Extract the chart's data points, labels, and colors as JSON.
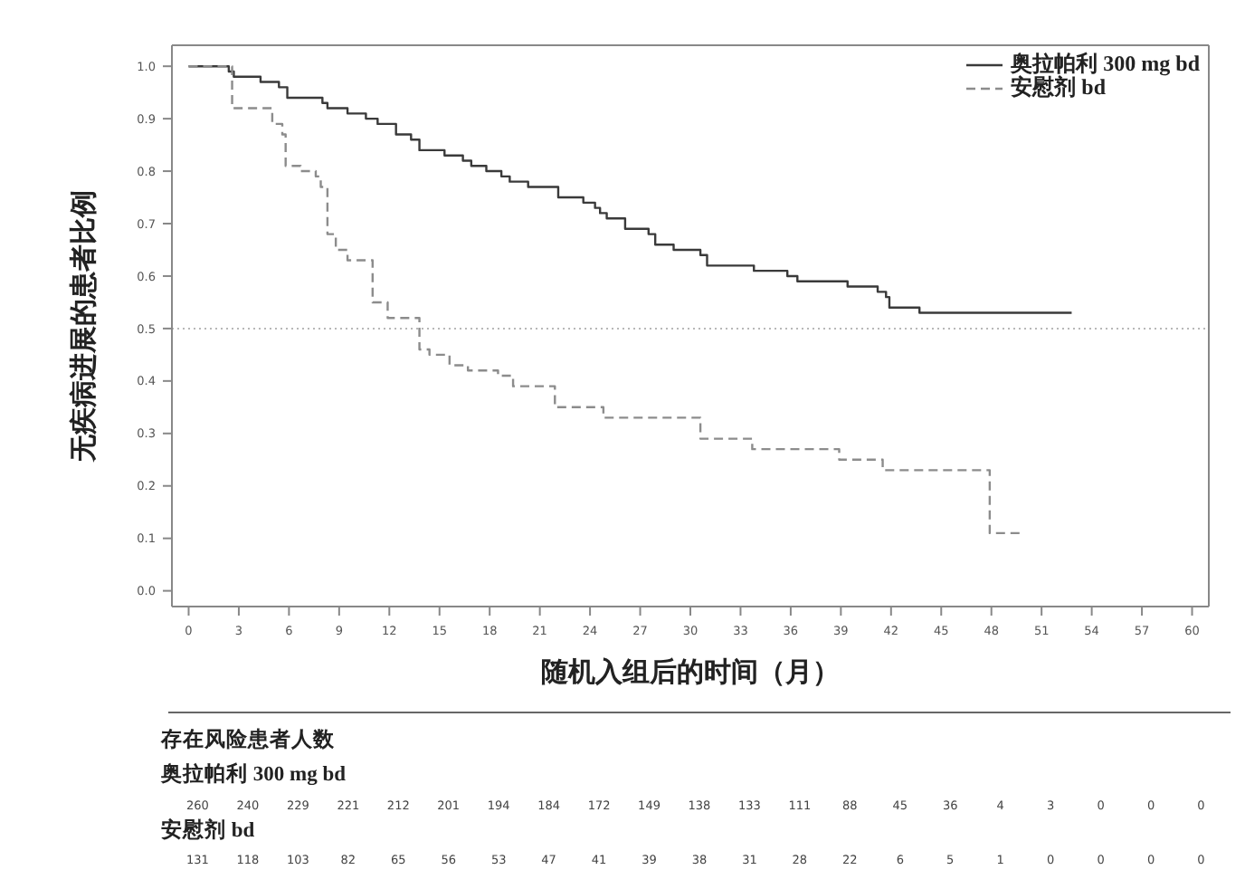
{
  "chart_data": {
    "type": "step",
    "xlabel": "随机入组后的时间（月）",
    "ylabel": "无疾病进展的患者比例",
    "xlim": [
      -1,
      61
    ],
    "xticks": [
      0,
      3,
      6,
      9,
      12,
      15,
      18,
      21,
      24,
      27,
      30,
      33,
      36,
      39,
      42,
      45,
      48,
      51,
      54,
      57,
      60
    ],
    "ylim": [
      -0.03,
      1.04
    ],
    "yticks": [
      {
        "value": 0,
        "label": "0.0"
      },
      0.1,
      0.2,
      0.3,
      0.4,
      0.5,
      0.6,
      0.7,
      0.8,
      0.9,
      {
        "value": 1,
        "label": "1.0"
      }
    ],
    "legend": "top right",
    "ref_lines": [
      {
        "axis": "y",
        "value": 0.5,
        "color": "#b8b8b8",
        "line_style": "dotted"
      }
    ],
    "series": [
      {
        "name": "奥拉帕利 300 mg bd",
        "color": "#3a3a3a",
        "line_style": "solid",
        "x": [
          0,
          2.4,
          2.7,
          4.3,
          5.4,
          5.9,
          8.0,
          8.3,
          9.5,
          10.6,
          11.3,
          12.4,
          13.3,
          13.8,
          15.3,
          16.4,
          16.9,
          17.8,
          18.7,
          19.2,
          20.3,
          22.1,
          23.6,
          24.3,
          24.6,
          25.0,
          26.1,
          26.8,
          27.5,
          27.9,
          29.0,
          30.6,
          31.0,
          32.9,
          33.8,
          35.8,
          36.4,
          38.9,
          39.4,
          41.2,
          41.7,
          41.9,
          43.7,
          52.8
        ],
        "values": [
          1.0,
          0.99,
          0.98,
          0.97,
          0.96,
          0.94,
          0.93,
          0.92,
          0.91,
          0.9,
          0.89,
          0.87,
          0.86,
          0.84,
          0.83,
          0.82,
          0.81,
          0.8,
          0.79,
          0.78,
          0.77,
          0.75,
          0.74,
          0.73,
          0.72,
          0.71,
          0.69,
          0.69,
          0.68,
          0.66,
          0.65,
          0.64,
          0.62,
          0.62,
          0.61,
          0.6,
          0.59,
          0.59,
          0.58,
          0.57,
          0.56,
          0.54,
          0.53,
          0.53
        ]
      },
      {
        "name": "安慰剂 bd",
        "color": "#8c8c8c",
        "line_style": "dashed",
        "x": [
          0,
          2.6,
          5.0,
          5.6,
          5.8,
          6.7,
          7.6,
          7.9,
          8.3,
          8.8,
          9.5,
          11.0,
          11.9,
          13.8,
          14.4,
          15.6,
          16.7,
          18.5,
          19.4,
          21.9,
          24.8,
          30.6,
          33.7,
          38.9,
          41.5,
          47.9,
          49.9
        ],
        "values": [
          1.0,
          0.92,
          0.89,
          0.87,
          0.81,
          0.8,
          0.79,
          0.77,
          0.68,
          0.65,
          0.63,
          0.55,
          0.52,
          0.46,
          0.45,
          0.43,
          0.42,
          0.41,
          0.39,
          0.35,
          0.33,
          0.29,
          0.27,
          0.25,
          0.23,
          0.11,
          0.11
        ]
      }
    ],
    "annotations": [
      "存在风险患者人数",
      "奥拉帕利 300 mg bd",
      "260",
      "240",
      "229",
      "221",
      "212",
      "201",
      "194",
      "184",
      "172",
      "149",
      "138",
      "133",
      "111",
      "88",
      "45",
      "36",
      "4",
      "3",
      "0",
      "0",
      "0",
      "安慰剂 bd",
      "131",
      "118",
      "103",
      "82",
      "65",
      "56",
      "53",
      "47",
      "41",
      "39",
      "38",
      "31",
      "28",
      "22",
      "6",
      "5",
      "1",
      "0",
      "0",
      "0",
      "0"
    ]
  }
}
